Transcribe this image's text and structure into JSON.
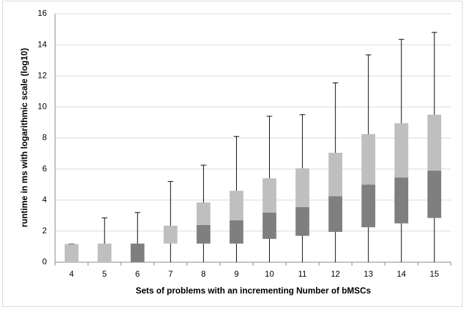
{
  "chart_data": {
    "type": "box",
    "x_label": "Sets of problems with an incrementing Number of bMSCs",
    "y_label": "runtime in ms  with logarithmic scale (log10)",
    "categories": [
      "4",
      "5",
      "6",
      "7",
      "8",
      "9",
      "10",
      "11",
      "12",
      "13",
      "14",
      "15"
    ],
    "min": [
      0,
      0,
      0,
      0,
      0,
      0,
      0,
      0,
      0,
      0,
      0,
      0
    ],
    "q1": [
      0,
      0,
      0,
      1.2,
      1.2,
      1.2,
      1.5,
      1.7,
      1.95,
      2.25,
      2.5,
      2.85
    ],
    "median": [
      0,
      0,
      1.2,
      1.2,
      2.4,
      2.7,
      3.2,
      3.55,
      4.25,
      5.0,
      5.45,
      5.9
    ],
    "q3": [
      1.17,
      1.2,
      1.2,
      2.35,
      3.85,
      4.6,
      5.4,
      6.05,
      7.05,
      8.25,
      8.95,
      9.5
    ],
    "max": [
      1.17,
      2.85,
      3.2,
      5.2,
      6.25,
      8.1,
      9.4,
      9.5,
      11.55,
      13.35,
      14.35,
      14.8
    ],
    "lower_color": "#7f7f7f",
    "upper_color": "#bfbfbf",
    "ylim": [
      0,
      16
    ],
    "yticks": [
      0,
      2,
      4,
      6,
      8,
      10,
      12,
      14,
      16
    ],
    "grid": true
  }
}
